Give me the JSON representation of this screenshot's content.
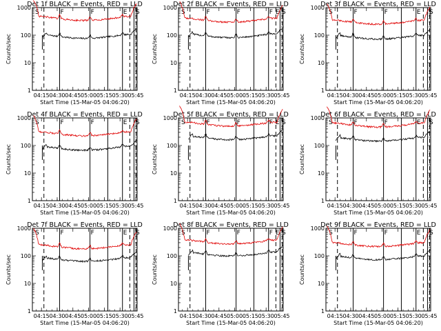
{
  "figure": {
    "background": "#ffffff",
    "black_color": "#000000",
    "red_color": "#e00000"
  },
  "chart_data": [
    {
      "panel": 1,
      "type": "line",
      "title": "Det 1f BLACK = Events, RED = LLD",
      "xlabel": "Start Time (15-Mar-05 04:06:20)",
      "ylabel": "Counts/sec",
      "yscale": "log",
      "ylim": [
        1,
        1000
      ],
      "y_ticks": [
        "1",
        "10",
        "100",
        "1000"
      ],
      "xlim_min": [
        0,
        100
      ],
      "x_ticks": [
        {
          "min": 8.67,
          "label": "04:15"
        },
        {
          "min": 23.67,
          "label": "04:30"
        },
        {
          "min": 38.67,
          "label": "04:45"
        },
        {
          "min": 53.67,
          "label": "05:00"
        },
        {
          "min": 68.67,
          "label": "05:15"
        },
        {
          "min": 83.67,
          "label": "05:30"
        },
        {
          "min": 98.67,
          "label": "05:45"
        }
      ],
      "markers": [
        {
          "label": "S",
          "min": 2
        },
        {
          "label": "F",
          "min": 26
        },
        {
          "label": "F",
          "min": 55
        },
        {
          "label": "E",
          "min": 86
        },
        {
          "label": "S",
          "min": 98
        }
      ],
      "vlines_solid_min": [
        26,
        55,
        72,
        86,
        97
      ],
      "vlines_dashed_min": [
        11,
        93,
        99
      ],
      "series": [
        {
          "name": "Events",
          "color": "black",
          "base": 85,
          "scale": 1.0
        },
        {
          "name": "LLD",
          "color": "red",
          "base": 380,
          "scale": 1.0
        }
      ]
    },
    {
      "panel": 2,
      "type": "line",
      "title": "Det 2f BLACK = Events, RED = LLD",
      "xlabel": "Start Time (15-Mar-05 04:06:20)",
      "ylabel": "Counts/sec",
      "yscale": "log",
      "ylim": [
        1,
        1000
      ],
      "y_ticks": [
        "1",
        "10",
        "100",
        "1000"
      ],
      "xlim_min": [
        0,
        100
      ],
      "x_ticks": [
        {
          "min": 8.67,
          "label": "04:15"
        },
        {
          "min": 23.67,
          "label": "04:30"
        },
        {
          "min": 38.67,
          "label": "04:45"
        },
        {
          "min": 53.67,
          "label": "05:00"
        },
        {
          "min": 68.67,
          "label": "05:15"
        },
        {
          "min": 83.67,
          "label": "05:30"
        },
        {
          "min": 98.67,
          "label": "05:45"
        }
      ],
      "markers": [
        {
          "label": "S",
          "min": 2
        },
        {
          "label": "F",
          "min": 26
        },
        {
          "label": "F",
          "min": 55
        },
        {
          "label": "F",
          "min": 86
        },
        {
          "label": "E",
          "min": 92
        },
        {
          "label": "S",
          "min": 98
        }
      ],
      "vlines_solid_min": [
        26,
        55,
        72,
        86,
        97
      ],
      "vlines_dashed_min": [
        11,
        93,
        99
      ],
      "series": [
        {
          "name": "Events",
          "color": "black",
          "base": 90,
          "scale": 1.0
        },
        {
          "name": "LLD",
          "color": "red",
          "base": 330,
          "scale": 1.0
        }
      ]
    },
    {
      "panel": 3,
      "type": "line",
      "title": "Det 3f BLACK = Events, RED = LLD",
      "xlabel": "Start Time (15-Mar-05 04:06:20)",
      "ylabel": "Counts/sec",
      "yscale": "log",
      "ylim": [
        1,
        1000
      ],
      "y_ticks": [
        "1",
        "10",
        "100",
        "1000"
      ],
      "xlim_min": [
        0,
        100
      ],
      "x_ticks": [
        {
          "min": 8.67,
          "label": "04:15"
        },
        {
          "min": 23.67,
          "label": "04:30"
        },
        {
          "min": 38.67,
          "label": "04:45"
        },
        {
          "min": 53.67,
          "label": "05:00"
        },
        {
          "min": 68.67,
          "label": "05:15"
        },
        {
          "min": 83.67,
          "label": "05:30"
        },
        {
          "min": 98.67,
          "label": "05:45"
        }
      ],
      "markers": [
        {
          "label": "S",
          "min": 2
        },
        {
          "label": "F",
          "min": 26
        },
        {
          "label": "F",
          "min": 55
        },
        {
          "label": "E",
          "min": 86
        },
        {
          "label": "S",
          "min": 98
        }
      ],
      "vlines_solid_min": [
        26,
        55,
        72,
        86,
        97
      ],
      "vlines_dashed_min": [
        11,
        93,
        99
      ],
      "series": [
        {
          "name": "Events",
          "color": "black",
          "base": 80,
          "scale": 1.0
        },
        {
          "name": "LLD",
          "color": "red",
          "base": 280,
          "scale": 1.0
        }
      ]
    },
    {
      "panel": 4,
      "type": "line",
      "title": "Det 4f BLACK = Events, RED = LLD",
      "xlabel": "Start Time (15-Mar-05 04:06:20)",
      "ylabel": "Counts/sec",
      "yscale": "log",
      "ylim": [
        1,
        1000
      ],
      "y_ticks": [
        "1",
        "10",
        "100",
        "1000"
      ],
      "xlim_min": [
        0,
        100
      ],
      "x_ticks": [
        {
          "min": 8.67,
          "label": "04:15"
        },
        {
          "min": 23.67,
          "label": "04:30"
        },
        {
          "min": 38.67,
          "label": "04:45"
        },
        {
          "min": 53.67,
          "label": "05:00"
        },
        {
          "min": 68.67,
          "label": "05:15"
        },
        {
          "min": 83.67,
          "label": "05:30"
        },
        {
          "min": 98.67,
          "label": "05:45"
        }
      ],
      "markers": [
        {
          "label": "S",
          "min": 2
        },
        {
          "label": "F",
          "min": 26
        },
        {
          "label": "F",
          "min": 55
        },
        {
          "label": "E",
          "min": 86
        },
        {
          "label": "S",
          "min": 98
        }
      ],
      "vlines_solid_min": [
        26,
        55,
        72,
        86,
        97
      ],
      "vlines_dashed_min": [
        11,
        93,
        99
      ],
      "series": [
        {
          "name": "Events",
          "color": "black",
          "base": 75,
          "scale": 1.0
        },
        {
          "name": "LLD",
          "color": "red",
          "base": 250,
          "scale": 1.0
        }
      ]
    },
    {
      "panel": 5,
      "type": "line",
      "title": "Det 5f BLACK = Events, RED = LLD",
      "xlabel": "Start Time (15-Mar-05 04:06:20)",
      "ylabel": "Counts/sec",
      "yscale": "log",
      "ylim": [
        1,
        1000
      ],
      "y_ticks": [
        "1",
        "10",
        "100",
        "1000"
      ],
      "xlim_min": [
        0,
        100
      ],
      "x_ticks": [
        {
          "min": 8.67,
          "label": "04:15"
        },
        {
          "min": 23.67,
          "label": "04:30"
        },
        {
          "min": 38.67,
          "label": "04:45"
        },
        {
          "min": 53.67,
          "label": "05:00"
        },
        {
          "min": 68.67,
          "label": "05:15"
        },
        {
          "min": 83.67,
          "label": "05:30"
        },
        {
          "min": 98.67,
          "label": "05:45"
        }
      ],
      "markers": [
        {
          "label": "S",
          "min": 2
        },
        {
          "label": "F",
          "min": 26
        },
        {
          "label": "F",
          "min": 55
        },
        {
          "label": "F",
          "min": 86
        },
        {
          "label": "E",
          "min": 92
        },
        {
          "label": "S",
          "min": 98
        }
      ],
      "vlines_solid_min": [
        26,
        55,
        72,
        86,
        97
      ],
      "vlines_dashed_min": [
        11,
        93,
        99
      ],
      "series": [
        {
          "name": "Events",
          "color": "black",
          "base": 180,
          "scale": 1.0
        },
        {
          "name": "LLD",
          "color": "red",
          "base": 560,
          "scale": 1.0
        }
      ]
    },
    {
      "panel": 6,
      "type": "line",
      "title": "Det 6f BLACK = Events, RED = LLD",
      "xlabel": "Start Time (15-Mar-05 04:06:20)",
      "ylabel": "Counts/sec",
      "yscale": "log",
      "ylim": [
        1,
        1000
      ],
      "y_ticks": [
        "1",
        "10",
        "100",
        "1000"
      ],
      "xlim_min": [
        0,
        100
      ],
      "x_ticks": [
        {
          "min": 8.67,
          "label": "04:15"
        },
        {
          "min": 23.67,
          "label": "04:30"
        },
        {
          "min": 38.67,
          "label": "04:45"
        },
        {
          "min": 53.67,
          "label": "05:00"
        },
        {
          "min": 68.67,
          "label": "05:15"
        },
        {
          "min": 83.67,
          "label": "05:30"
        },
        {
          "min": 98.67,
          "label": "05:45"
        }
      ],
      "markers": [
        {
          "label": "S",
          "min": 2
        },
        {
          "label": "F",
          "min": 26
        },
        {
          "label": "F",
          "min": 55
        },
        {
          "label": "E",
          "min": 86
        },
        {
          "label": "S",
          "min": 98
        }
      ],
      "vlines_solid_min": [
        26,
        55,
        72,
        86,
        97
      ],
      "vlines_dashed_min": [
        11,
        93,
        99
      ],
      "series": [
        {
          "name": "Events",
          "color": "black",
          "base": 160,
          "scale": 1.0
        },
        {
          "name": "LLD",
          "color": "red",
          "base": 520,
          "scale": 1.0
        }
      ]
    },
    {
      "panel": 7,
      "type": "line",
      "title": "Det 7f BLACK = Events, RED = LLD",
      "xlabel": "Start Time (15-Mar-05 04:06:20)",
      "ylabel": "Counts/sec",
      "yscale": "log",
      "ylim": [
        1,
        1000
      ],
      "y_ticks": [
        "1",
        "10",
        "100",
        "1000"
      ],
      "xlim_min": [
        0,
        100
      ],
      "x_ticks": [
        {
          "min": 8.67,
          "label": "04:15"
        },
        {
          "min": 23.67,
          "label": "04:30"
        },
        {
          "min": 38.67,
          "label": "04:45"
        },
        {
          "min": 53.67,
          "label": "05:00"
        },
        {
          "min": 68.67,
          "label": "05:15"
        },
        {
          "min": 83.67,
          "label": "05:30"
        },
        {
          "min": 98.67,
          "label": "05:45"
        }
      ],
      "markers": [
        {
          "label": "S",
          "min": 2
        },
        {
          "label": "F",
          "min": 26
        },
        {
          "label": "F",
          "min": 55
        },
        {
          "label": "E",
          "min": 86
        },
        {
          "label": "S",
          "min": 98
        }
      ],
      "vlines_solid_min": [
        26,
        55,
        72,
        86,
        97
      ],
      "vlines_dashed_min": [
        11,
        93,
        99
      ],
      "series": [
        {
          "name": "Events",
          "color": "black",
          "base": 70,
          "scale": 1.0
        },
        {
          "name": "LLD",
          "color": "red",
          "base": 200,
          "scale": 1.0
        }
      ]
    },
    {
      "panel": 8,
      "type": "line",
      "title": "Det 8f BLACK = Events, RED = LLD",
      "xlabel": "Start Time (15-Mar-05 04:06:20)",
      "ylabel": "Counts/sec",
      "yscale": "log",
      "ylim": [
        1,
        1000
      ],
      "y_ticks": [
        "1",
        "10",
        "100",
        "1000"
      ],
      "xlim_min": [
        0,
        100
      ],
      "x_ticks": [
        {
          "min": 8.67,
          "label": "04:15"
        },
        {
          "min": 23.67,
          "label": "04:30"
        },
        {
          "min": 38.67,
          "label": "04:45"
        },
        {
          "min": 53.67,
          "label": "05:00"
        },
        {
          "min": 68.67,
          "label": "05:15"
        },
        {
          "min": 83.67,
          "label": "05:30"
        },
        {
          "min": 98.67,
          "label": "05:45"
        }
      ],
      "markers": [
        {
          "label": "S",
          "min": 2
        },
        {
          "label": "F",
          "min": 26
        },
        {
          "label": "F",
          "min": 55
        },
        {
          "label": "F",
          "min": 86
        },
        {
          "label": "E",
          "min": 92
        },
        {
          "label": "S",
          "min": 98
        }
      ],
      "vlines_solid_min": [
        26,
        55,
        72,
        86,
        97
      ],
      "vlines_dashed_min": [
        11,
        93,
        99
      ],
      "series": [
        {
          "name": "Events",
          "color": "black",
          "base": 110,
          "scale": 1.0
        },
        {
          "name": "LLD",
          "color": "red",
          "base": 300,
          "scale": 1.0
        }
      ]
    },
    {
      "panel": 9,
      "type": "line",
      "title": "Det 9f BLACK = Events, RED = LLD",
      "xlabel": "Start Time (15-Mar-05 04:06:20)",
      "ylabel": "Counts/sec",
      "yscale": "log",
      "ylim": [
        1,
        1000
      ],
      "y_ticks": [
        "1",
        "10",
        "100",
        "1000"
      ],
      "xlim_min": [
        0,
        100
      ],
      "x_ticks": [
        {
          "min": 8.67,
          "label": "04:15"
        },
        {
          "min": 23.67,
          "label": "04:30"
        },
        {
          "min": 38.67,
          "label": "04:45"
        },
        {
          "min": 53.67,
          "label": "05:00"
        },
        {
          "min": 68.67,
          "label": "05:15"
        },
        {
          "min": 83.67,
          "label": "05:30"
        },
        {
          "min": 98.67,
          "label": "05:45"
        }
      ],
      "markers": [
        {
          "label": "S",
          "min": 2
        },
        {
          "label": "F",
          "min": 26
        },
        {
          "label": "F",
          "min": 55
        },
        {
          "label": "E",
          "min": 86
        },
        {
          "label": "S",
          "min": 98
        }
      ],
      "vlines_solid_min": [
        26,
        55,
        72,
        86,
        97
      ],
      "vlines_dashed_min": [
        11,
        93,
        99
      ],
      "series": [
        {
          "name": "Events",
          "color": "black",
          "base": 80,
          "scale": 1.0
        },
        {
          "name": "LLD",
          "color": "red",
          "base": 240,
          "scale": 1.0
        }
      ]
    }
  ]
}
